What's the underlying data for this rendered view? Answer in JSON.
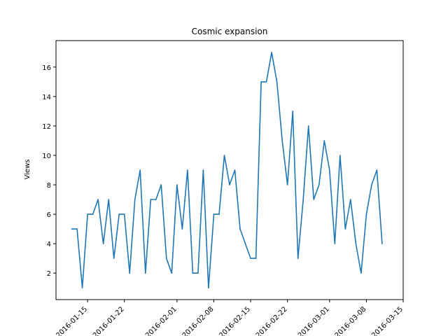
{
  "chart_data": {
    "type": "line",
    "title": "Cosmic expansion",
    "xlabel": "",
    "ylabel": "Views",
    "x_tick_labels": [
      "2016-01-15",
      "2016-01-22",
      "2016-02-01",
      "2016-02-08",
      "2016-02-15",
      "2016-02-22",
      "2016-03-01",
      "2016-03-08",
      "2016-03-15"
    ],
    "y_ticks": [
      2,
      4,
      6,
      8,
      10,
      12,
      14,
      16
    ],
    "ylim": [
      0.2,
      17.8
    ],
    "xlim": [
      "2016-01-09",
      "2016-03-15"
    ],
    "grid": false,
    "legend": "none",
    "line_color": "#1f77b4",
    "series": [
      {
        "x": [
          "2016-01-12",
          "2016-01-13",
          "2016-01-14",
          "2016-01-15",
          "2016-01-16",
          "2016-01-17",
          "2016-01-18",
          "2016-01-19",
          "2016-01-20",
          "2016-01-21",
          "2016-01-22",
          "2016-01-23",
          "2016-01-24",
          "2016-01-25",
          "2016-01-26",
          "2016-01-27",
          "2016-01-28",
          "2016-01-29",
          "2016-01-30",
          "2016-01-31",
          "2016-02-01",
          "2016-02-02",
          "2016-02-03",
          "2016-02-04",
          "2016-02-05",
          "2016-02-06",
          "2016-02-07",
          "2016-02-08",
          "2016-02-09",
          "2016-02-10",
          "2016-02-11",
          "2016-02-12",
          "2016-02-13",
          "2016-02-14",
          "2016-02-15",
          "2016-02-16",
          "2016-02-17",
          "2016-02-18",
          "2016-02-19",
          "2016-02-20",
          "2016-02-21",
          "2016-02-22",
          "2016-02-23",
          "2016-02-24",
          "2016-02-25",
          "2016-02-26",
          "2016-02-27",
          "2016-02-28",
          "2016-02-29",
          "2016-03-01",
          "2016-03-02",
          "2016-03-03",
          "2016-03-04",
          "2016-03-05",
          "2016-03-06",
          "2016-03-07",
          "2016-03-08",
          "2016-03-09",
          "2016-03-10",
          "2016-03-11"
        ],
        "values": [
          5,
          5,
          1,
          6,
          6,
          7,
          4,
          7,
          3,
          6,
          6,
          2,
          7,
          9,
          2,
          7,
          7,
          8,
          3,
          2,
          8,
          5,
          9,
          2,
          2,
          9,
          1,
          6,
          6,
          10,
          8,
          9,
          5,
          4,
          3,
          3,
          15,
          15,
          17,
          15,
          11,
          8,
          13,
          3,
          7,
          12,
          7,
          8,
          11,
          9,
          4,
          10,
          5,
          7,
          4,
          2,
          6,
          8,
          9,
          4
        ]
      }
    ]
  }
}
